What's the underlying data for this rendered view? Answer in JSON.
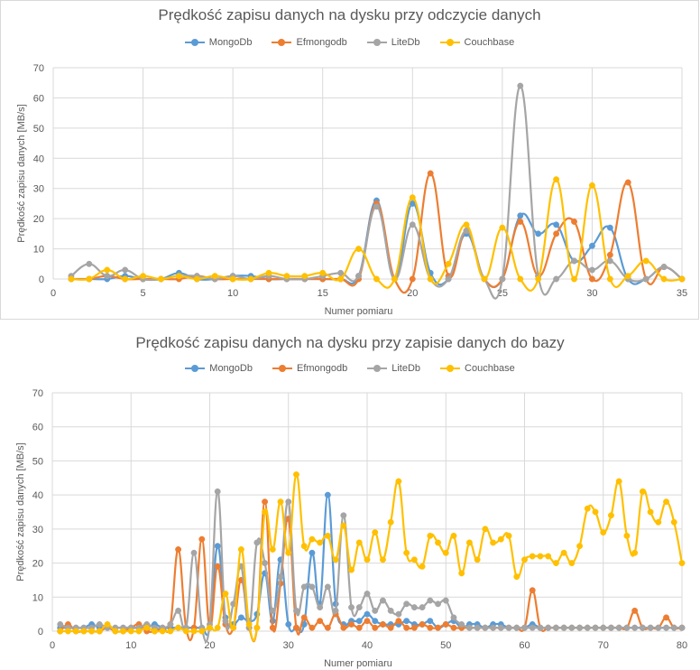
{
  "chart_data": [
    {
      "type": "line",
      "title": "Prędkość zapisu danych na dysku przy odczycie danych",
      "xlabel": "Numer pomiaru",
      "ylabel": "Prędkość zapisu danych [MB/s]",
      "xlim": [
        0,
        35
      ],
      "ylim": [
        0,
        70
      ],
      "xticks": [
        0,
        5,
        10,
        15,
        20,
        25,
        30,
        35
      ],
      "yticks": [
        0,
        10,
        20,
        30,
        40,
        50,
        60,
        70
      ],
      "grid": true,
      "smooth": true,
      "legend_position": "top",
      "x": [
        1,
        2,
        3,
        4,
        5,
        6,
        7,
        8,
        9,
        10,
        11,
        12,
        13,
        14,
        15,
        16,
        17,
        18,
        19,
        20,
        21,
        22,
        23,
        24,
        25,
        26,
        27,
        28,
        29,
        30,
        31,
        32,
        33,
        34,
        35
      ],
      "series": [
        {
          "name": "MongoDb",
          "color": "#5b9bd5",
          "values": [
            0,
            0,
            0,
            1,
            0,
            0,
            2,
            0,
            0,
            1,
            1,
            0,
            0,
            0,
            0,
            0,
            1,
            26,
            0,
            25,
            2,
            0,
            15,
            0,
            0,
            21,
            15,
            18,
            6,
            11,
            17,
            0,
            0,
            4,
            0
          ]
        },
        {
          "name": "Efmongodb",
          "color": "#ed7d31",
          "values": [
            0,
            0,
            1,
            0,
            0,
            0,
            0,
            1,
            0,
            0,
            0,
            0,
            0,
            0,
            0,
            0,
            0,
            25,
            0,
            0,
            35,
            1,
            16,
            0,
            0,
            19,
            1,
            15,
            19,
            0,
            8,
            32,
            0,
            4,
            0
          ]
        },
        {
          "name": "LiteDb",
          "color": "#a5a5a5",
          "values": [
            1,
            5,
            1,
            3,
            0,
            0,
            1,
            1,
            0,
            1,
            0,
            1,
            0,
            0,
            1,
            2,
            1,
            24,
            0,
            18,
            0,
            0,
            16,
            0,
            0,
            64,
            1,
            0,
            6,
            3,
            6,
            0,
            0,
            4,
            0
          ]
        },
        {
          "name": "Couchbase",
          "color": "#ffc000",
          "values": [
            0,
            0,
            3,
            0,
            1,
            0,
            1,
            0,
            1,
            0,
            0,
            2,
            1,
            1,
            2,
            0,
            10,
            0,
            0,
            27,
            0,
            5,
            18,
            0,
            17,
            0,
            0,
            33,
            0,
            31,
            0,
            1,
            6,
            0,
            0
          ]
        }
      ]
    },
    {
      "type": "line",
      "title": "Prędkość zapisu danych na dysku przy zapisie danych do bazy",
      "xlabel": "Numer pomiaru",
      "ylabel": "Prędkość zapisu danych [MB/s]",
      "xlim": [
        0,
        80
      ],
      "ylim": [
        0,
        70
      ],
      "xticks": [
        0,
        10,
        20,
        30,
        40,
        50,
        60,
        70,
        80
      ],
      "yticks": [
        0,
        10,
        20,
        30,
        40,
        50,
        60,
        70
      ],
      "grid": true,
      "smooth": true,
      "legend_position": "top",
      "x": [
        1,
        2,
        3,
        4,
        5,
        6,
        7,
        8,
        9,
        10,
        11,
        12,
        13,
        14,
        15,
        16,
        17,
        18,
        19,
        20,
        21,
        22,
        23,
        24,
        25,
        26,
        27,
        28,
        29,
        30,
        31,
        32,
        33,
        34,
        35,
        36,
        37,
        38,
        39,
        40,
        41,
        42,
        43,
        44,
        45,
        46,
        47,
        48,
        49,
        50,
        51,
        52,
        53,
        54,
        55,
        56,
        57,
        58,
        59,
        60,
        61,
        62,
        63,
        64,
        65,
        66,
        67,
        68,
        69,
        70,
        71,
        72,
        73,
        74,
        75,
        76,
        77,
        78,
        79,
        80
      ],
      "series": [
        {
          "name": "MongoDb",
          "color": "#5b9bd5",
          "values": [
            1,
            1,
            1,
            1,
            2,
            1,
            1,
            1,
            1,
            1,
            1,
            1,
            2,
            1,
            1,
            1,
            1,
            1,
            1,
            1,
            25,
            4,
            2,
            4,
            3,
            5,
            17,
            3,
            21,
            2,
            1,
            2,
            23,
            8,
            40,
            8,
            2,
            3,
            3,
            5,
            3,
            2,
            2,
            2,
            3,
            2,
            2,
            3,
            1,
            2,
            3,
            1,
            2,
            2,
            1,
            2,
            2,
            1,
            1,
            1,
            2,
            1,
            1,
            1,
            1,
            1,
            1,
            1,
            1,
            1,
            1,
            1,
            1,
            1,
            1,
            1,
            1,
            1,
            1,
            1
          ]
        },
        {
          "name": "Efmongodb",
          "color": "#ed7d31",
          "values": [
            0,
            2,
            0,
            0,
            0,
            0,
            1,
            0,
            0,
            1,
            2,
            0,
            0,
            1,
            2,
            24,
            1,
            1,
            27,
            1,
            19,
            2,
            1,
            15,
            1,
            1,
            38,
            1,
            14,
            33,
            1,
            4,
            1,
            3,
            1,
            5,
            1,
            2,
            1,
            3,
            1,
            2,
            1,
            3,
            1,
            1,
            2,
            1,
            1,
            2,
            1,
            1,
            1,
            1,
            1,
            1,
            1,
            1,
            1,
            1,
            12,
            1,
            1,
            1,
            1,
            1,
            1,
            1,
            1,
            1,
            1,
            1,
            1,
            6,
            1,
            1,
            1,
            4,
            1,
            1
          ]
        },
        {
          "name": "LiteDb",
          "color": "#a5a5a5",
          "values": [
            2,
            1,
            1,
            1,
            1,
            2,
            1,
            1,
            1,
            1,
            1,
            2,
            1,
            1,
            2,
            6,
            1,
            23,
            1,
            2,
            41,
            3,
            8,
            19,
            1,
            26,
            20,
            6,
            16,
            38,
            6,
            13,
            13,
            7,
            13,
            6,
            34,
            7,
            7,
            11,
            6,
            9,
            6,
            5,
            8,
            7,
            7,
            9,
            8,
            9,
            4,
            2,
            1,
            1,
            1,
            1,
            1,
            1,
            1,
            1,
            1,
            1,
            1,
            1,
            1,
            1,
            1,
            1,
            1,
            1,
            1,
            1,
            1,
            1,
            1,
            1,
            1,
            1,
            1,
            1
          ]
        },
        {
          "name": "Couchbase",
          "color": "#ffc000",
          "values": [
            0,
            0,
            0,
            0,
            0,
            0,
            2,
            0,
            0,
            0,
            0,
            1,
            0,
            0,
            0,
            1,
            0,
            0,
            0,
            1,
            1,
            11,
            1,
            24,
            2,
            1,
            35,
            24,
            38,
            23,
            46,
            25,
            27,
            26,
            28,
            21,
            31,
            18,
            26,
            21,
            29,
            21,
            32,
            44,
            23,
            21,
            19,
            28,
            26,
            23,
            28,
            17,
            26,
            21,
            30,
            26,
            27,
            28,
            16,
            21,
            22,
            22,
            22,
            20,
            23,
            20,
            25,
            36,
            35,
            29,
            34,
            44,
            28,
            23,
            41,
            35,
            32,
            38,
            32,
            20
          ]
        }
      ]
    }
  ]
}
